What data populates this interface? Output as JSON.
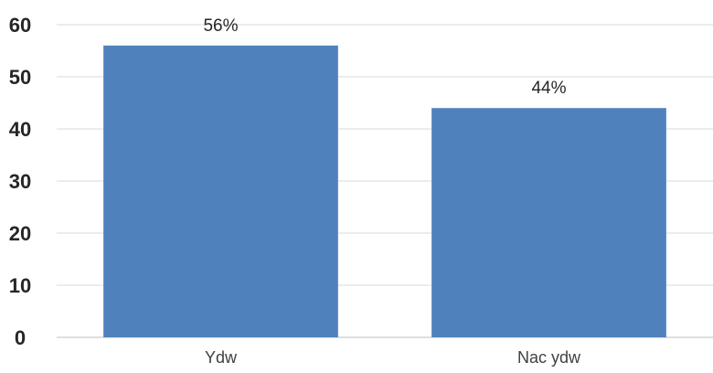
{
  "chart_data": {
    "type": "bar",
    "categories": [
      "Ydw",
      "Nac ydw"
    ],
    "values": [
      56,
      44
    ],
    "data_labels": [
      "56%",
      "44%"
    ],
    "yticks": [
      "0",
      "10",
      "20",
      "30",
      "40",
      "50",
      "60"
    ],
    "ylim": [
      0,
      60
    ],
    "grid": true,
    "legend": "none",
    "bar_color": "#4f81bd"
  }
}
